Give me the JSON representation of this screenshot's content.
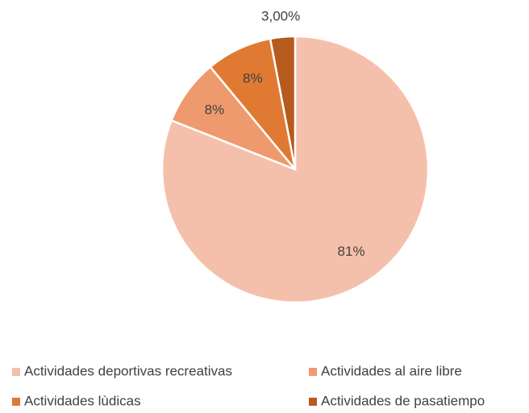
{
  "chart_data": {
    "type": "pie",
    "categories": [
      "Actividades deportivas recreativas",
      "Actividades al aire libre",
      "Actividades lùdicas",
      "Actividades de pasatiempo"
    ],
    "values": [
      81,
      8,
      8,
      3
    ],
    "value_labels": [
      "81%",
      "8%",
      "8%",
      "3,00%"
    ],
    "colors": [
      "#f5c0ab",
      "#ee9a6e",
      "#e07a32",
      "#b65a1e"
    ],
    "legend": "bottom"
  }
}
